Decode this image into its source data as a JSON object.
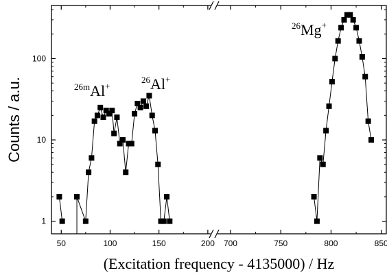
{
  "chart_data": {
    "type": "scatter",
    "ylabel": "Counts / a.u.",
    "xlabel": "(Excitation frequency - 4135000) / Hz",
    "yscale": "log",
    "ylim": [
      0.7,
      450
    ],
    "x_axis_break": {
      "segment1": [
        40,
        205
      ],
      "segment2": [
        685,
        855
      ]
    },
    "x_ticks_segment1": [
      "50",
      "100",
      "150",
      "200"
    ],
    "x_ticks_segment2": [
      "700",
      "750",
      "800",
      "850"
    ],
    "y_ticks": [
      "1",
      "10",
      "100"
    ],
    "marker": "square",
    "line": true,
    "annotations": [
      {
        "label": "Al",
        "mass": "26m",
        "charge": "+",
        "near_x": 85
      },
      {
        "label": "Al",
        "mass": "26",
        "charge": "+",
        "near_x": 135
      },
      {
        "label": "Mg",
        "mass": "26",
        "charge": "+",
        "near_x": 807
      }
    ],
    "series": [
      {
        "points": [
          [
            48,
            2
          ],
          [
            51,
            1
          ],
          [
            66,
            2
          ],
          [
            75,
            1
          ],
          [
            78,
            4
          ],
          [
            81,
            6
          ],
          [
            84,
            17
          ],
          [
            87,
            20
          ],
          [
            90,
            25
          ],
          [
            93,
            19
          ],
          [
            96,
            23
          ],
          [
            99,
            21
          ],
          [
            102,
            23
          ],
          [
            104,
            12
          ],
          [
            107,
            19
          ],
          [
            110,
            9
          ],
          [
            113,
            10
          ],
          [
            116,
            4
          ],
          [
            119,
            9
          ],
          [
            122,
            9
          ],
          [
            125,
            21
          ],
          [
            128,
            28
          ],
          [
            131,
            25
          ],
          [
            134,
            30
          ],
          [
            137,
            26
          ],
          [
            140,
            35
          ],
          [
            143,
            20
          ],
          [
            146,
            13
          ],
          [
            149,
            5
          ],
          [
            152,
            1
          ],
          [
            155,
            1
          ],
          [
            158,
            2
          ],
          [
            161,
            1
          ],
          [
            783,
            2
          ],
          [
            786,
            1
          ],
          [
            789,
            6
          ],
          [
            792,
            5
          ],
          [
            795,
            13
          ],
          [
            798,
            26
          ],
          [
            801,
            52
          ],
          [
            804,
            100
          ],
          [
            807,
            165
          ],
          [
            810,
            240
          ],
          [
            813,
            300
          ],
          [
            816,
            345
          ],
          [
            819,
            345
          ],
          [
            822,
            300
          ],
          [
            825,
            240
          ],
          [
            828,
            165
          ],
          [
            831,
            105
          ],
          [
            834,
            60
          ],
          [
            837,
            17
          ],
          [
            840,
            10
          ]
        ],
        "gap_after_x": 51
      }
    ]
  }
}
